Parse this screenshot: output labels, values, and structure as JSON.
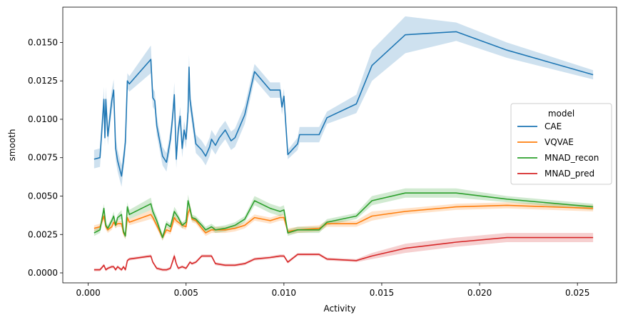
{
  "chart_data": {
    "type": "line",
    "xlabel": "Activity",
    "ylabel": "smooth",
    "xlim": [
      -0.0013,
      0.027
    ],
    "ylim": [
      -0.00065,
      0.0173
    ],
    "xticks": [
      0.0,
      0.005,
      0.01,
      0.015,
      0.02,
      0.025
    ],
    "xtick_labels": [
      "0.000",
      "0.005",
      "0.010",
      "0.015",
      "0.020",
      "0.025"
    ],
    "yticks": [
      0.0,
      0.0025,
      0.005,
      0.0075,
      0.01,
      0.0125,
      0.015
    ],
    "ytick_labels": [
      "0.0000",
      "0.0025",
      "0.0050",
      "0.0075",
      "0.0100",
      "0.0125",
      "0.0150"
    ],
    "grid": false,
    "legend": {
      "title": "model",
      "placement": "center-right"
    },
    "series": [
      {
        "name": "CAE",
        "color": "#1f77b4",
        "x": [
          0.0003,
          0.0006,
          0.0008,
          0.00085,
          0.0009,
          0.001,
          0.0012,
          0.0013,
          0.0014,
          0.0015,
          0.0017,
          0.0018,
          0.0019,
          0.002,
          0.00205,
          0.0021,
          0.0032,
          0.0033,
          0.0034,
          0.0035,
          0.0038,
          0.004,
          0.0042,
          0.0043,
          0.0044,
          0.0045,
          0.0046,
          0.0047,
          0.0048,
          0.0049,
          0.005,
          0.0051,
          0.00515,
          0.0052,
          0.0053,
          0.0055,
          0.0058,
          0.006,
          0.0062,
          0.0063,
          0.0065,
          0.0067,
          0.007,
          0.0073,
          0.0075,
          0.008,
          0.0085,
          0.0093,
          0.0098,
          0.0099,
          0.01,
          0.0102,
          0.0107,
          0.0108,
          0.0118,
          0.0122,
          0.0137,
          0.0145,
          0.0162,
          0.0188,
          0.0214,
          0.0258
        ],
        "y": [
          0.0074,
          0.0075,
          0.0113,
          0.0088,
          0.0113,
          0.0089,
          0.0112,
          0.0119,
          0.0081,
          0.0073,
          0.0063,
          0.0073,
          0.0085,
          0.0125,
          0.0124,
          0.0123,
          0.0139,
          0.0114,
          0.0112,
          0.0096,
          0.0076,
          0.0072,
          0.0087,
          0.01,
          0.0116,
          0.0074,
          0.0093,
          0.0102,
          0.0081,
          0.0093,
          0.0087,
          0.0105,
          0.0134,
          0.0113,
          0.0103,
          0.0084,
          0.008,
          0.0076,
          0.0082,
          0.0087,
          0.0083,
          0.0088,
          0.0093,
          0.0086,
          0.0088,
          0.0103,
          0.0131,
          0.0119,
          0.0119,
          0.0108,
          0.0115,
          0.0077,
          0.0084,
          0.009,
          0.009,
          0.0101,
          0.011,
          0.0135,
          0.0155,
          0.0157,
          0.0145,
          0.0129
        ],
        "ci": [
          0.0006,
          0.0006,
          0.0008,
          0.0006,
          0.0008,
          0.0006,
          0.0007,
          0.0007,
          0.0007,
          0.0007,
          0.0007,
          0.0006,
          0.0007,
          0.0005,
          0.0005,
          0.0005,
          0.0009,
          0.0006,
          0.0006,
          0.0006,
          0.0006,
          0.0006,
          0.0006,
          0.0006,
          0.0008,
          0.0006,
          0.0006,
          0.0006,
          0.0006,
          0.0006,
          0.0006,
          0.0007,
          0.0008,
          0.0007,
          0.0006,
          0.0006,
          0.0006,
          0.0006,
          0.0006,
          0.0006,
          0.0006,
          0.0006,
          0.0006,
          0.0006,
          0.0006,
          0.0006,
          0.0005,
          0.0005,
          0.0005,
          0.0005,
          0.0005,
          0.0003,
          0.0004,
          0.0005,
          0.0005,
          0.0004,
          0.0006,
          0.001,
          0.0012,
          0.0006,
          0.0005,
          0.0003
        ]
      },
      {
        "name": "VQVAE",
        "color": "#ff7f0e",
        "x": [
          0.0003,
          0.0006,
          0.0008,
          0.0009,
          0.001,
          0.0012,
          0.0013,
          0.0014,
          0.0015,
          0.0017,
          0.0018,
          0.0019,
          0.002,
          0.0021,
          0.0032,
          0.0033,
          0.0035,
          0.0038,
          0.004,
          0.0042,
          0.0044,
          0.0045,
          0.0046,
          0.0048,
          0.005,
          0.0051,
          0.0052,
          0.0053,
          0.0055,
          0.0058,
          0.006,
          0.0063,
          0.0065,
          0.007,
          0.0075,
          0.008,
          0.0085,
          0.0093,
          0.0098,
          0.01,
          0.0102,
          0.0107,
          0.0118,
          0.0122,
          0.0137,
          0.0145,
          0.0162,
          0.0188,
          0.0214,
          0.0258
        ],
        "y": [
          0.0029,
          0.003,
          0.0037,
          0.003,
          0.0028,
          0.003,
          0.0033,
          0.0031,
          0.0032,
          0.0032,
          0.0026,
          0.0024,
          0.0036,
          0.0033,
          0.0038,
          0.0036,
          0.0031,
          0.0023,
          0.0028,
          0.0027,
          0.0036,
          0.0034,
          0.0033,
          0.0031,
          0.003,
          0.0039,
          0.0042,
          0.0035,
          0.0034,
          0.0029,
          0.0026,
          0.0028,
          0.0028,
          0.0028,
          0.0029,
          0.0031,
          0.0036,
          0.0034,
          0.0036,
          0.0036,
          0.0027,
          0.0028,
          0.0029,
          0.0032,
          0.0032,
          0.0037,
          0.004,
          0.0043,
          0.0044,
          0.0042
        ],
        "ci": [
          0.0002,
          0.0002,
          0.0003,
          0.0002,
          0.0002,
          0.0002,
          0.0002,
          0.0002,
          0.0002,
          0.0002,
          0.0002,
          0.0002,
          0.0002,
          0.0002,
          0.0003,
          0.0002,
          0.0002,
          0.0002,
          0.0002,
          0.0002,
          0.0003,
          0.0002,
          0.0002,
          0.0002,
          0.0002,
          0.0003,
          0.0003,
          0.0002,
          0.0002,
          0.0002,
          0.0002,
          0.0002,
          0.0002,
          0.0002,
          0.0002,
          0.0002,
          0.0002,
          0.0002,
          0.0002,
          0.0002,
          0.0002,
          0.0002,
          0.0002,
          0.0002,
          0.0002,
          0.0003,
          0.0002,
          0.0002,
          0.0002,
          0.0002
        ]
      },
      {
        "name": "MNAD_recon",
        "color": "#2ca02c",
        "x": [
          0.0003,
          0.0006,
          0.0008,
          0.0009,
          0.001,
          0.0012,
          0.0013,
          0.0014,
          0.0015,
          0.0017,
          0.0018,
          0.0019,
          0.002,
          0.0021,
          0.0032,
          0.0033,
          0.0035,
          0.0038,
          0.004,
          0.0042,
          0.0044,
          0.0045,
          0.0046,
          0.0048,
          0.005,
          0.0051,
          0.0052,
          0.0053,
          0.0055,
          0.0058,
          0.006,
          0.0063,
          0.0065,
          0.007,
          0.0075,
          0.008,
          0.0085,
          0.0093,
          0.0098,
          0.01,
          0.0102,
          0.0107,
          0.0118,
          0.0122,
          0.0137,
          0.0145,
          0.0162,
          0.0188,
          0.0214,
          0.0258
        ],
        "y": [
          0.0026,
          0.0028,
          0.0042,
          0.0031,
          0.0029,
          0.0034,
          0.0037,
          0.0031,
          0.0036,
          0.0038,
          0.0027,
          0.0024,
          0.0043,
          0.0038,
          0.0045,
          0.004,
          0.0034,
          0.0023,
          0.0032,
          0.003,
          0.004,
          0.0038,
          0.0036,
          0.0031,
          0.0033,
          0.0047,
          0.0042,
          0.0036,
          0.0035,
          0.0031,
          0.0028,
          0.003,
          0.0028,
          0.0029,
          0.0031,
          0.0035,
          0.0047,
          0.0042,
          0.004,
          0.0041,
          0.0026,
          0.0028,
          0.0028,
          0.0033,
          0.0037,
          0.0047,
          0.0052,
          0.0052,
          0.0048,
          0.0043
        ],
        "ci": [
          0.0002,
          0.0002,
          0.0003,
          0.0002,
          0.0002,
          0.0002,
          0.0003,
          0.0002,
          0.0002,
          0.0003,
          0.0002,
          0.0002,
          0.0003,
          0.0003,
          0.0004,
          0.0003,
          0.0003,
          0.0002,
          0.0002,
          0.0002,
          0.0003,
          0.0003,
          0.0002,
          0.0002,
          0.0002,
          0.0004,
          0.0003,
          0.0002,
          0.0002,
          0.0002,
          0.0002,
          0.0002,
          0.0002,
          0.0002,
          0.0002,
          0.0002,
          0.0003,
          0.0003,
          0.0003,
          0.0003,
          0.0002,
          0.0002,
          0.0002,
          0.0002,
          0.0002,
          0.0003,
          0.0003,
          0.0003,
          0.0002,
          0.0002
        ]
      },
      {
        "name": "MNAD_pred",
        "color": "#d62728",
        "x": [
          0.0003,
          0.0006,
          0.0008,
          0.0009,
          0.001,
          0.0012,
          0.0013,
          0.0014,
          0.0015,
          0.0017,
          0.0018,
          0.0019,
          0.002,
          0.0021,
          0.0032,
          0.0033,
          0.0035,
          0.0038,
          0.004,
          0.0042,
          0.0044,
          0.0045,
          0.0046,
          0.0048,
          0.005,
          0.0051,
          0.0052,
          0.0053,
          0.0055,
          0.0058,
          0.006,
          0.0063,
          0.0065,
          0.007,
          0.0075,
          0.008,
          0.0085,
          0.0093,
          0.0098,
          0.01,
          0.0102,
          0.0107,
          0.0118,
          0.0122,
          0.0137,
          0.0145,
          0.0162,
          0.0188,
          0.0214,
          0.0258
        ],
        "y": [
          0.0002,
          0.0002,
          0.0005,
          0.0002,
          0.0003,
          0.0004,
          0.0004,
          0.0002,
          0.0004,
          0.0002,
          0.0004,
          0.0002,
          0.0008,
          0.0009,
          0.0011,
          0.0007,
          0.0003,
          0.0002,
          0.0002,
          0.0003,
          0.0011,
          0.0006,
          0.0003,
          0.0004,
          0.0003,
          0.0005,
          0.0007,
          0.0006,
          0.0007,
          0.0011,
          0.0011,
          0.0011,
          0.0006,
          0.0005,
          0.0005,
          0.0006,
          0.0009,
          0.001,
          0.0011,
          0.0011,
          0.0007,
          0.0012,
          0.0012,
          0.0009,
          0.0008,
          0.0011,
          0.0016,
          0.002,
          0.0023,
          0.0023
        ],
        "ci": [
          0.0001,
          0.0001,
          0.0001,
          0.0001,
          0.0001,
          0.0001,
          0.0001,
          0.0001,
          0.0001,
          0.0001,
          0.0001,
          0.0001,
          0.0001,
          0.0001,
          0.0001,
          0.0001,
          0.0001,
          0.0001,
          0.0001,
          0.0001,
          0.0002,
          0.0001,
          0.0001,
          0.0001,
          0.0001,
          0.0001,
          0.0001,
          0.0001,
          0.0001,
          0.0001,
          0.0001,
          0.0001,
          0.0001,
          0.0001,
          0.0001,
          0.0001,
          0.0001,
          0.0001,
          0.0001,
          0.0001,
          0.0001,
          0.0001,
          0.0001,
          0.0001,
          0.0001,
          0.0002,
          0.0003,
          0.0003,
          0.0003,
          0.0003
        ]
      }
    ]
  }
}
